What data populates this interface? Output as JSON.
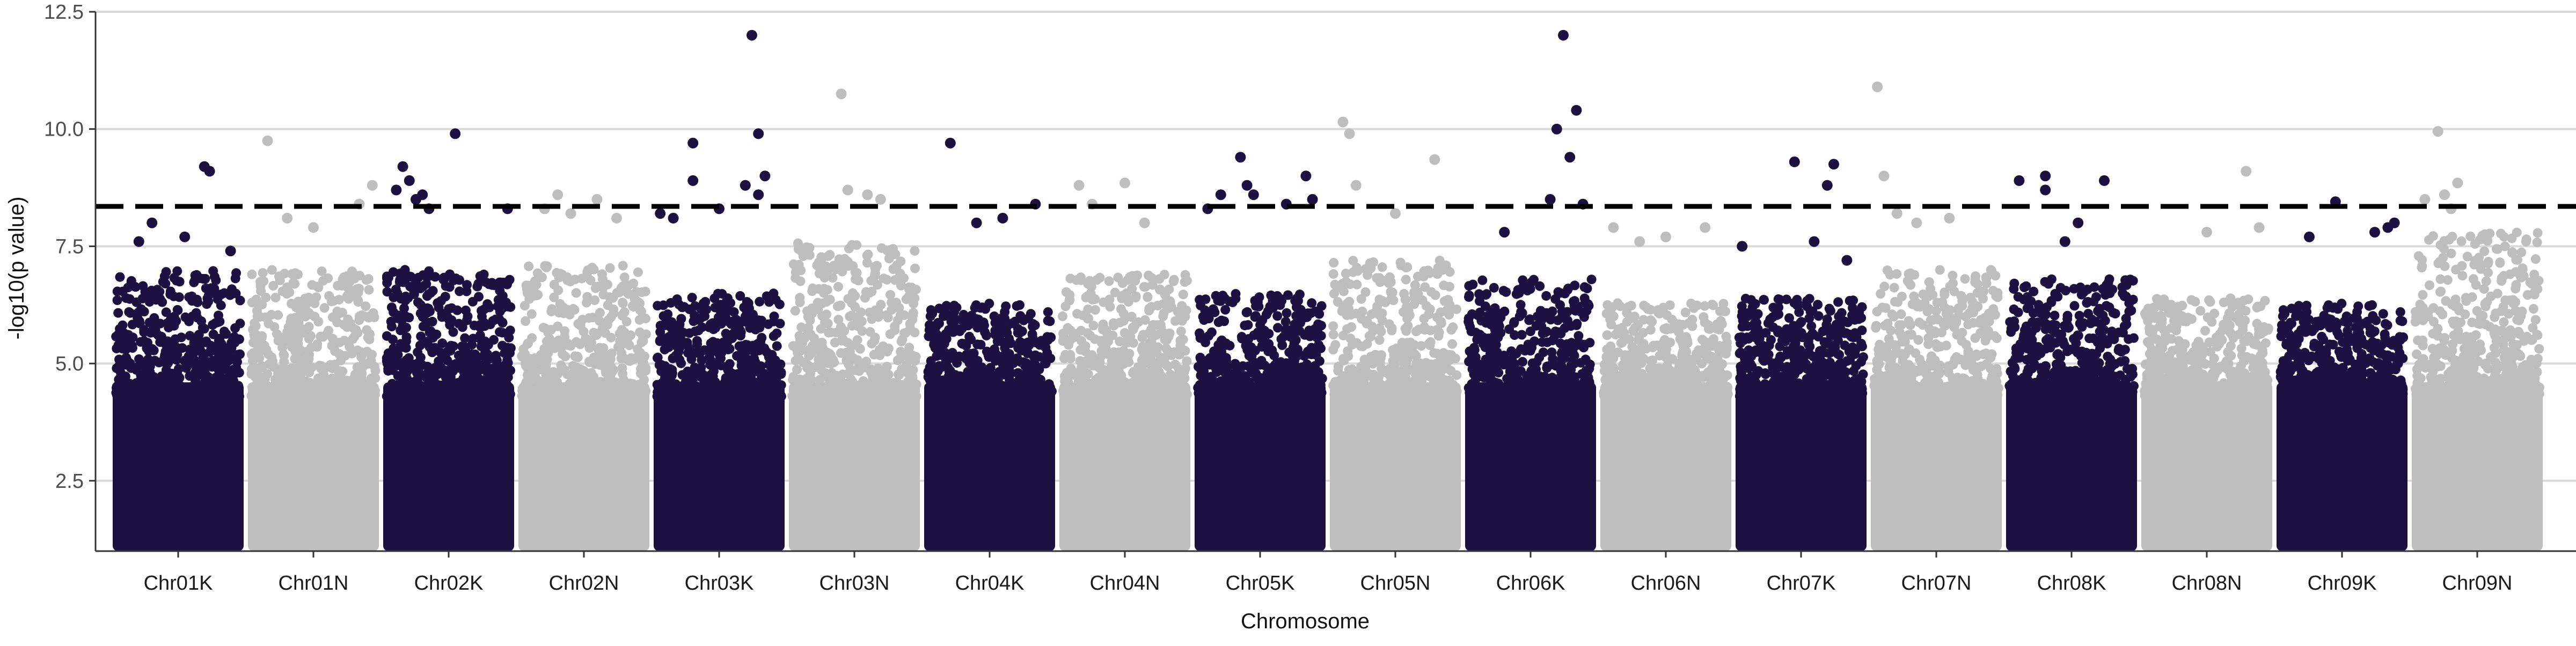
{
  "chart_data": {
    "type": "scatter",
    "subtype": "manhattan",
    "title": "",
    "xlabel": "Chromosome",
    "ylabel": "-log10(p value)",
    "ylim": [
      1,
      12.5
    ],
    "yticks": [
      "2.5",
      "5.0",
      "7.5",
      "10.0",
      "12.5"
    ],
    "ytick_values": [
      2.5,
      5.0,
      7.5,
      10.0,
      12.5
    ],
    "grid": "horizontal major gridlines",
    "legend": "none",
    "threshold": 8.35,
    "colors": {
      "odd": "#1c1040",
      "even": "#bebebe",
      "threshold": "#000000",
      "grid": "#d9d9d9"
    },
    "categories": [
      "Chr01K",
      "Chr01N",
      "Chr02K",
      "Chr02N",
      "Chr03K",
      "Chr03N",
      "Chr04K",
      "Chr04N",
      "Chr05K",
      "Chr05N",
      "Chr06K",
      "Chr06N",
      "Chr07K",
      "Chr07N",
      "Chr08K",
      "Chr08N",
      "Chr09K",
      "Chr09N"
    ],
    "series": [
      {
        "chrom": "Chr01K",
        "typical_max": 7.0,
        "points": [
          [
            0.2,
            7.6
          ],
          [
            0.3,
            8.0
          ],
          [
            0.55,
            7.7
          ],
          [
            0.7,
            9.2
          ],
          [
            0.74,
            9.1
          ],
          [
            0.9,
            7.4
          ]
        ]
      },
      {
        "chrom": "Chr01N",
        "typical_max": 7.0,
        "points": [
          [
            0.15,
            9.75
          ],
          [
            0.3,
            8.1
          ],
          [
            0.5,
            7.9
          ],
          [
            0.85,
            8.4
          ],
          [
            0.95,
            8.8
          ]
        ]
      },
      {
        "chrom": "Chr02K",
        "typical_max": 7.0,
        "points": [
          [
            0.1,
            8.7
          ],
          [
            0.15,
            9.2
          ],
          [
            0.2,
            8.9
          ],
          [
            0.25,
            8.5
          ],
          [
            0.3,
            8.6
          ],
          [
            0.35,
            8.3
          ],
          [
            0.55,
            9.9
          ],
          [
            0.95,
            8.3
          ]
        ]
      },
      {
        "chrom": "Chr02N",
        "typical_max": 7.1,
        "points": [
          [
            0.2,
            8.3
          ],
          [
            0.3,
            8.6
          ],
          [
            0.4,
            8.2
          ],
          [
            0.6,
            8.5
          ],
          [
            0.75,
            8.1
          ]
        ]
      },
      {
        "chrom": "Chr03K",
        "typical_max": 6.5,
        "points": [
          [
            0.05,
            8.2
          ],
          [
            0.15,
            8.1
          ],
          [
            0.3,
            9.7
          ],
          [
            0.3,
            8.9
          ],
          [
            0.5,
            8.3
          ],
          [
            0.75,
            12.0
          ],
          [
            0.7,
            8.8
          ],
          [
            0.8,
            9.9
          ],
          [
            0.85,
            9.0
          ],
          [
            0.8,
            8.6
          ]
        ]
      },
      {
        "chrom": "Chr03N",
        "typical_max": 7.6,
        "points": [
          [
            0.4,
            10.75
          ],
          [
            0.45,
            8.7
          ],
          [
            0.6,
            8.6
          ],
          [
            0.7,
            8.5
          ]
        ]
      },
      {
        "chrom": "Chr04K",
        "typical_max": 6.3,
        "points": [
          [
            0.2,
            9.7
          ],
          [
            0.4,
            8.0
          ],
          [
            0.6,
            8.1
          ],
          [
            0.85,
            8.4
          ]
        ]
      },
      {
        "chrom": "Chr04N",
        "typical_max": 6.9,
        "points": [
          [
            0.15,
            8.8
          ],
          [
            0.25,
            8.4
          ],
          [
            0.5,
            8.85
          ],
          [
            0.65,
            8.0
          ]
        ]
      },
      {
        "chrom": "Chr05K",
        "typical_max": 6.5,
        "points": [
          [
            0.1,
            8.3
          ],
          [
            0.2,
            8.6
          ],
          [
            0.35,
            9.4
          ],
          [
            0.4,
            8.8
          ],
          [
            0.45,
            8.6
          ],
          [
            0.7,
            8.4
          ],
          [
            0.85,
            9.0
          ],
          [
            0.9,
            8.5
          ]
        ]
      },
      {
        "chrom": "Chr05N",
        "typical_max": 7.2,
        "points": [
          [
            0.1,
            10.15
          ],
          [
            0.15,
            9.9
          ],
          [
            0.2,
            8.8
          ],
          [
            0.8,
            9.35
          ],
          [
            0.5,
            8.2
          ]
        ]
      },
      {
        "chrom": "Chr06K",
        "typical_max": 6.8,
        "points": [
          [
            0.3,
            7.8
          ],
          [
            0.7,
            10.0
          ],
          [
            0.75,
            12.0
          ],
          [
            0.8,
            9.4
          ],
          [
            0.85,
            10.4
          ],
          [
            0.9,
            8.4
          ],
          [
            0.65,
            8.5
          ]
        ]
      },
      {
        "chrom": "Chr06N",
        "typical_max": 6.3,
        "points": [
          [
            0.1,
            7.9
          ],
          [
            0.3,
            7.6
          ],
          [
            0.5,
            7.7
          ],
          [
            0.8,
            7.9
          ]
        ]
      },
      {
        "chrom": "Chr07K",
        "typical_max": 6.4,
        "points": [
          [
            0.05,
            7.5
          ],
          [
            0.45,
            9.3
          ],
          [
            0.75,
            9.25
          ],
          [
            0.7,
            8.8
          ],
          [
            0.6,
            7.6
          ],
          [
            0.85,
            7.2
          ]
        ]
      },
      {
        "chrom": "Chr07N",
        "typical_max": 7.0,
        "points": [
          [
            0.05,
            10.9
          ],
          [
            0.1,
            9.0
          ],
          [
            0.2,
            8.2
          ],
          [
            0.35,
            8.0
          ],
          [
            0.6,
            8.1
          ]
        ]
      },
      {
        "chrom": "Chr08K",
        "typical_max": 6.8,
        "points": [
          [
            0.1,
            8.9
          ],
          [
            0.3,
            9.0
          ],
          [
            0.3,
            8.7
          ],
          [
            0.55,
            8.0
          ],
          [
            0.75,
            8.9
          ],
          [
            0.45,
            7.6
          ]
        ]
      },
      {
        "chrom": "Chr08N",
        "typical_max": 6.4,
        "points": [
          [
            0.5,
            7.8
          ],
          [
            0.8,
            9.1
          ],
          [
            0.9,
            7.9
          ]
        ]
      },
      {
        "chrom": "Chr09K",
        "typical_max": 6.3,
        "points": [
          [
            0.25,
            7.7
          ],
          [
            0.45,
            8.45
          ],
          [
            0.75,
            7.8
          ],
          [
            0.85,
            7.9
          ],
          [
            0.9,
            8.0
          ]
        ]
      },
      {
        "chrom": "Chr09N",
        "typical_max": 7.8,
        "points": [
          [
            0.1,
            8.5
          ],
          [
            0.2,
            9.95
          ],
          [
            0.25,
            8.6
          ],
          [
            0.35,
            8.85
          ],
          [
            0.3,
            8.3
          ]
        ]
      }
    ]
  }
}
